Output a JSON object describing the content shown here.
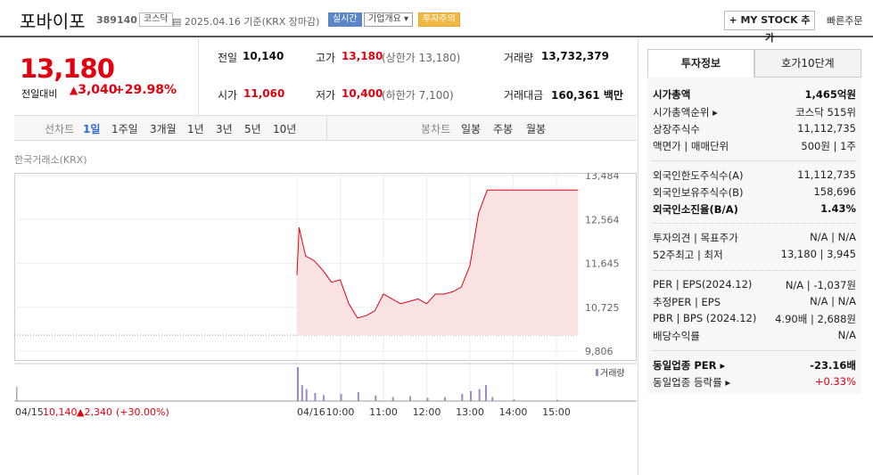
{
  "header": {
    "name": "포바이포",
    "code": "389140",
    "market": "코스닥",
    "date": "2025.04.16 기준(KRX 장마감)",
    "realtime": "실시간",
    "company": "기업개요 ▾",
    "warning": "투자주의",
    "mystock": "+ MY STOCK 추가",
    "quick_order": "빠른주문"
  },
  "price": {
    "current": "13,180",
    "change_label": "전일대비",
    "change": "3,040",
    "change_pct": "+29.98%"
  },
  "quote": {
    "prev_label": "전일",
    "prev": "10,140",
    "high_label": "고가",
    "high": "13,180",
    "high_sub": "(상한가 13,180)",
    "volume_label": "거래량",
    "volume": "13,732,379",
    "open_label": "시가",
    "open": "11,060",
    "low_label": "저가",
    "low": "10,400",
    "low_sub": "(하한가 7,100)",
    "amount_label": "거래대금",
    "amount": "160,361 백만"
  },
  "range": {
    "line_label": "선차트",
    "periods": [
      "1일",
      "1주일",
      "3개월",
      "1년",
      "3년",
      "5년",
      "10년"
    ],
    "active": "1일",
    "candle_label": "봉차트",
    "candles": [
      "일봉",
      "주봉",
      "월봉"
    ]
  },
  "chart_source": "한국거래소(KRX)",
  "chart_data": {
    "type": "line",
    "yticks": [
      "13,484",
      "12,564",
      "11,645",
      "10,725",
      "9,806"
    ],
    "ylim": [
      9806,
      13484
    ],
    "xticks": [
      "04/16",
      "10:00",
      "11:00",
      "12:00",
      "13:00",
      "14:00",
      "15:00"
    ],
    "prev_close": 10140,
    "volume_legend": "거래량",
    "prev_day_label": "04/15",
    "prev_day_close": "10,140",
    "prev_day_change": "▲2,340",
    "prev_day_pct": "(+30.00%)",
    "price_points": [
      [
        9.0,
        11400
      ],
      [
        9.05,
        12400
      ],
      [
        9.1,
        12200
      ],
      [
        9.2,
        11800
      ],
      [
        9.4,
        11700
      ],
      [
        9.6,
        11500
      ],
      [
        9.8,
        11250
      ],
      [
        10.0,
        11300
      ],
      [
        10.2,
        10800
      ],
      [
        10.4,
        10500
      ],
      [
        10.6,
        10550
      ],
      [
        10.8,
        10650
      ],
      [
        11.0,
        11000
      ],
      [
        11.2,
        10900
      ],
      [
        11.4,
        10800
      ],
      [
        11.6,
        10850
      ],
      [
        11.8,
        10900
      ],
      [
        12.0,
        10800
      ],
      [
        12.2,
        11000
      ],
      [
        12.4,
        11000
      ],
      [
        12.6,
        11050
      ],
      [
        12.8,
        11150
      ],
      [
        13.0,
        11600
      ],
      [
        13.2,
        12700
      ],
      [
        13.4,
        13180
      ],
      [
        15.5,
        13180
      ]
    ],
    "volume_bars": [
      [
        9.0,
        85
      ],
      [
        9.1,
        40
      ],
      [
        9.2,
        30
      ],
      [
        9.4,
        20
      ],
      [
        9.6,
        15
      ],
      [
        10.0,
        18
      ],
      [
        10.4,
        22
      ],
      [
        10.8,
        14
      ],
      [
        11.2,
        10
      ],
      [
        11.6,
        12
      ],
      [
        12.0,
        8
      ],
      [
        12.4,
        10
      ],
      [
        12.8,
        18
      ],
      [
        13.0,
        25
      ],
      [
        13.2,
        30
      ],
      [
        13.35,
        40
      ],
      [
        13.5,
        10
      ],
      [
        14.0,
        4
      ],
      [
        15.0,
        3
      ]
    ]
  },
  "sidebar": {
    "tab_invest": "투자정보",
    "tab_orderbook": "호가10단계",
    "rows": [
      {
        "l": "시가총액",
        "r": "1,465억원",
        "bold": true
      },
      {
        "l": "시가총액순위 ▸",
        "r": "코스닥 515위"
      },
      {
        "l": "상장주식수",
        "r": "11,112,735"
      },
      {
        "l": "액면가 | 매매단위",
        "r": "500원 | 1주"
      },
      {
        "l": "외국인한도주식수(A)",
        "r": "11,112,735"
      },
      {
        "l": "외국인보유주식수(B)",
        "r": "158,696"
      },
      {
        "l": "외국인소진율(B/A)",
        "r": "1.43%",
        "bold": true
      },
      {
        "l": "투자의견 | 목표주가",
        "r": "N/A | N/A"
      },
      {
        "l": "52주최고 | 최저",
        "r": "13,180 | 3,945"
      },
      {
        "l": "PER | EPS(2024.12)",
        "r": "N/A | -1,037원"
      },
      {
        "l": "추정PER | EPS",
        "r": "N/A | N/A"
      },
      {
        "l": "PBR | BPS (2024.12)",
        "r": "4.90배 | 2,688원"
      },
      {
        "l": "배당수익률",
        "r": "N/A"
      },
      {
        "l": "동일업종 PER ▸",
        "r": "-23.16배",
        "bold": true
      },
      {
        "l": "동일업종 등락률 ▸",
        "r": "+0.33%",
        "red": true
      }
    ]
  }
}
